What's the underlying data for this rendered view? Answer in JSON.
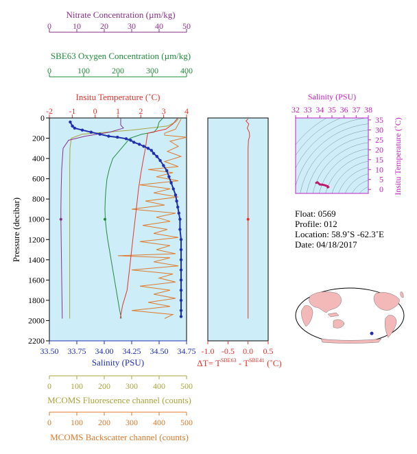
{
  "colors": {
    "plot_bg": "#cdeef8",
    "nitrate": "#8a2e8a",
    "oxygen": "#1f8a3a",
    "temperature": "#e8312a",
    "salinity": "#1f2fb0",
    "fluorescence": "#a8a33a",
    "backscatter": "#e0782a",
    "delta_t": "#e8312a",
    "ts_axis": "#c21fc2",
    "ts_isopycnal": "#7a8a9a",
    "map_land": "#f3b8b8",
    "map_ocean": "#ffffff"
  },
  "chart_data": [
    {
      "id": "main-profile",
      "type": "line",
      "ylabel": "Pressure (decibar)",
      "ylim": [
        2200,
        0
      ],
      "yticks": [
        0,
        200,
        400,
        600,
        800,
        1000,
        1200,
        1400,
        1600,
        1800,
        2000,
        2200
      ],
      "grid": false,
      "axes": {
        "nitrate": {
          "label": "Nitrate Concentration (µm/kg)",
          "range": [
            0,
            50
          ],
          "ticks": [
            0,
            10,
            20,
            30,
            40,
            50
          ]
        },
        "oxygen": {
          "label": "SBE63 Oxygen Concentration (µm/kg)",
          "range": [
            0,
            400
          ],
          "ticks": [
            0,
            100,
            200,
            300,
            400
          ]
        },
        "temperature": {
          "label": "Insitu Temperature (˚C)",
          "range": [
            -2,
            4
          ],
          "ticks": [
            -2,
            -1,
            0,
            1,
            2,
            3,
            4
          ]
        },
        "salinity": {
          "label": "Salinity (PSU)",
          "range": [
            33.5,
            34.75
          ],
          "ticks": [
            "33.50",
            "33.75",
            "34.00",
            "34.25",
            "34.50",
            "34.75"
          ]
        },
        "fluorescence": {
          "label": "MCOMS Fluorescence channel (counts)",
          "range": [
            0,
            500
          ],
          "ticks": [
            0,
            100,
            200,
            300,
            400,
            500
          ]
        },
        "backscatter": {
          "label": "MCOMS Backscatter channel (counts)",
          "range": [
            0,
            500
          ],
          "ticks": [
            0,
            100,
            200,
            300,
            400,
            500
          ]
        }
      },
      "series": [
        {
          "key": "temperature",
          "points": [
            [
              3.6,
              5
            ],
            [
              3.4,
              60
            ],
            [
              3.1,
              110
            ],
            [
              2.3,
              150
            ],
            [
              2.25,
              220
            ],
            [
              2.2,
              300
            ],
            [
              2.1,
              420
            ],
            [
              2.0,
              550
            ],
            [
              1.9,
              700
            ],
            [
              1.8,
              900
            ],
            [
              1.7,
              1100
            ],
            [
              1.6,
              1300
            ],
            [
              1.5,
              1500
            ],
            [
              1.4,
              1700
            ],
            [
              1.2,
              1850
            ],
            [
              1.1,
              1980
            ]
          ]
        },
        {
          "key": "salinity",
          "markers": true,
          "points": [
            [
              33.69,
              40
            ],
            [
              33.71,
              80
            ],
            [
              33.73,
              100
            ],
            [
              33.8,
              120
            ],
            [
              33.88,
              140
            ],
            [
              33.96,
              160
            ],
            [
              34.04,
              180
            ],
            [
              34.12,
              190
            ],
            [
              34.2,
              205
            ],
            [
              34.24,
              220
            ],
            [
              34.27,
              240
            ],
            [
              34.32,
              260
            ],
            [
              34.36,
              280
            ],
            [
              34.4,
              300
            ],
            [
              34.43,
              320
            ],
            [
              34.45,
              350
            ],
            [
              34.48,
              380
            ],
            [
              34.51,
              420
            ],
            [
              34.54,
              470
            ],
            [
              34.57,
              520
            ],
            [
              34.59,
              580
            ],
            [
              34.61,
              640
            ],
            [
              34.63,
              700
            ],
            [
              34.65,
              760
            ],
            [
              34.66,
              820
            ],
            [
              34.67,
              880
            ],
            [
              34.68,
              940
            ],
            [
              34.69,
              1000
            ],
            [
              34.69,
              1100
            ],
            [
              34.7,
              1200
            ],
            [
              34.7,
              1300
            ],
            [
              34.7,
              1400
            ],
            [
              34.7,
              1500
            ],
            [
              34.7,
              1600
            ],
            [
              34.7,
              1700
            ],
            [
              34.7,
              1800
            ],
            [
              34.7,
              1900
            ],
            [
              34.7,
              1960
            ]
          ]
        },
        {
          "key": "oxygen",
          "points": [
            [
              330,
              5
            ],
            [
              320,
              40
            ],
            [
              315,
              100
            ],
            [
              305,
              140
            ],
            [
              270,
              160
            ],
            [
              235,
              200
            ],
            [
              210,
              300
            ],
            [
              185,
              400
            ],
            [
              175,
              500
            ],
            [
              168,
              600
            ],
            [
              165,
              700
            ],
            [
              163,
              800
            ],
            [
              162,
              900
            ],
            [
              163,
              1000
            ],
            [
              166,
              1100
            ],
            [
              170,
              1200
            ],
            [
              175,
              1300
            ],
            [
              180,
              1400
            ],
            [
              185,
              1500
            ],
            [
              190,
              1600
            ],
            [
              195,
              1700
            ],
            [
              200,
              1800
            ],
            [
              205,
              1900
            ],
            [
              210,
              1980
            ]
          ]
        },
        {
          "key": "nitrate",
          "points": [
            [
              26,
              5
            ],
            [
              26,
              70
            ],
            [
              27,
              100
            ],
            [
              22,
              140
            ],
            [
              13,
              180
            ],
            [
              7,
              220
            ],
            [
              5,
              300
            ],
            [
              4.5,
              500
            ],
            [
              4.3,
              700
            ],
            [
              4.2,
              900
            ],
            [
              4.2,
              1000
            ],
            [
              4.3,
              1200
            ],
            [
              4.4,
              1400
            ],
            [
              4.5,
              1600
            ],
            [
              4.6,
              1800
            ],
            [
              4.7,
              1980
            ]
          ]
        },
        {
          "key": "fluorescence",
          "points": [
            [
              470,
              10
            ],
            [
              460,
              40
            ],
            [
              430,
              80
            ],
            [
              300,
              120
            ],
            [
              120,
              160
            ],
            [
              80,
              200
            ],
            [
              75,
              300
            ],
            [
              74,
              500
            ],
            [
              74,
              800
            ],
            [
              74,
              1100
            ],
            [
              74,
              1400
            ],
            [
              74,
              1700
            ],
            [
              74,
              1980
            ]
          ]
        },
        {
          "key": "backscatter",
          "points": [
            [
              480,
              10
            ],
            [
              470,
              60
            ],
            [
              460,
              110
            ],
            [
              420,
              150
            ],
            [
              420,
              170
            ],
            [
              500,
              190
            ],
            [
              440,
              230
            ],
            [
              470,
              280
            ],
            [
              430,
              330
            ],
            [
              480,
              380
            ],
            [
              420,
              430
            ],
            [
              470,
              480
            ],
            [
              360,
              510
            ],
            [
              450,
              540
            ],
            [
              390,
              580
            ],
            [
              470,
              620
            ],
            [
              330,
              660
            ],
            [
              440,
              700
            ],
            [
              380,
              740
            ],
            [
              470,
              780
            ],
            [
              350,
              820
            ],
            [
              420,
              860
            ],
            [
              300,
              900
            ],
            [
              460,
              940
            ],
            [
              390,
              980
            ],
            [
              440,
              1020
            ],
            [
              340,
              1060
            ],
            [
              430,
              1100
            ],
            [
              380,
              1140
            ],
            [
              470,
              1180
            ],
            [
              330,
              1220
            ],
            [
              440,
              1260
            ],
            [
              390,
              1300
            ],
            [
              460,
              1340
            ],
            [
              250,
              1360
            ],
            [
              440,
              1380
            ],
            [
              380,
              1420
            ],
            [
              470,
              1460
            ],
            [
              300,
              1500
            ],
            [
              450,
              1540
            ],
            [
              400,
              1580
            ],
            [
              460,
              1620
            ],
            [
              330,
              1660
            ],
            [
              440,
              1700
            ],
            [
              380,
              1740
            ],
            [
              460,
              1780
            ],
            [
              360,
              1820
            ],
            [
              440,
              1860
            ],
            [
              300,
              1900
            ],
            [
              450,
              1940
            ],
            [
              420,
              1980
            ]
          ]
        }
      ],
      "discrete_markers": {
        "nitrate": [
          4.2,
          1000
        ],
        "oxygen": [
          162,
          1000
        ]
      }
    },
    {
      "id": "delta-t",
      "type": "line",
      "xlabel_parts": [
        "ΔT= T",
        "SBE63",
        " - T",
        "SBE41",
        " (˚C)"
      ],
      "xlim": [
        -1.0,
        0.5
      ],
      "xticks": [
        "-1.0",
        "-0.5",
        "0.0",
        "0.5"
      ],
      "ylim": [
        2200,
        0
      ],
      "points": [
        [
          0.0,
          10
        ],
        [
          -0.05,
          30
        ],
        [
          0.02,
          60
        ],
        [
          -0.02,
          100
        ],
        [
          0.03,
          140
        ],
        [
          0.04,
          180
        ],
        [
          0.01,
          220
        ],
        [
          0.0,
          300
        ],
        [
          0.0,
          500
        ],
        [
          0.0,
          800
        ],
        [
          0.0,
          1100
        ],
        [
          0.0,
          1500
        ],
        [
          0.0,
          1980
        ]
      ],
      "marker": [
        0.0,
        1000
      ]
    },
    {
      "id": "ts-diagram",
      "type": "scatter",
      "xlabel": "Salinity (PSU)",
      "ylabel": "Insitu Temperature (˚C)",
      "xlim": [
        32,
        38
      ],
      "ylim": [
        -2,
        36
      ],
      "xticks": [
        32,
        33,
        34,
        35,
        36,
        37,
        38
      ],
      "yticks": [
        0,
        5,
        10,
        15,
        20,
        25,
        30,
        35
      ],
      "points": [
        [
          33.7,
          3.3
        ],
        [
          33.8,
          3.6
        ],
        [
          34.0,
          2.5
        ],
        [
          34.2,
          2.4
        ],
        [
          34.3,
          2.3
        ],
        [
          34.4,
          2.1
        ],
        [
          34.5,
          1.9
        ],
        [
          34.6,
          1.7
        ],
        [
          34.65,
          1.6
        ],
        [
          34.68,
          1.4
        ],
        [
          34.7,
          1.2
        ],
        [
          34.65,
          1.0
        ]
      ]
    }
  ],
  "float_info": {
    "float": "Float:  0569",
    "profile": "Profile:  012",
    "location": "Location:  58.9˚S  -62.3˚E",
    "date": "Date:  04/18/2017"
  },
  "map": {
    "marker_lon": -62.3,
    "marker_lat": -58.9
  }
}
